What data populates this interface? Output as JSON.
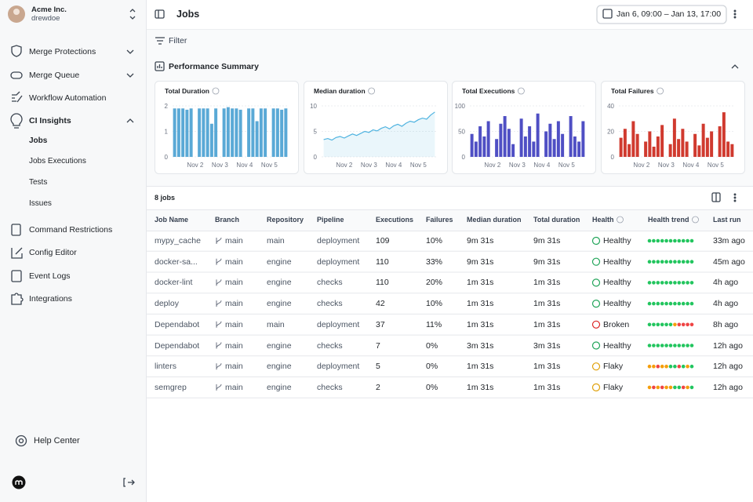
{
  "sidebar": {
    "org": "Acme Inc.",
    "user": "drewdoe",
    "nav": [
      "Merge Protections",
      "Merge Queue",
      "Workflow Automation",
      "CI Insights"
    ],
    "ci_children": [
      "Jobs",
      "Jobs Executions",
      "Tests",
      "Issues"
    ],
    "nav_bottom": [
      "Command Restrictions",
      "Config Editor",
      "Event Logs",
      "Integrations"
    ],
    "help": "Help Center"
  },
  "header": {
    "title": "Jobs",
    "date_range": "Jan 6, 09:00 – Jan 13, 17:00"
  },
  "filter": "Filter",
  "summary": {
    "title": "Performance Summary"
  },
  "chart_data": [
    {
      "type": "bar",
      "title": "Total Duration",
      "color": "#5aa9d6",
      "ylim": [
        0,
        2
      ],
      "yticks": [
        0,
        1,
        2
      ],
      "grid": true,
      "categories": [
        null,
        null,
        null,
        null,
        null,
        "Nov 2",
        null,
        null,
        null,
        null,
        null,
        "Nov 3",
        null,
        null,
        null,
        null,
        null,
        "Nov 4",
        null,
        null,
        null,
        null,
        null,
        "Nov 5",
        null,
        null,
        null,
        null
      ],
      "values": [
        1.9,
        1.9,
        1.9,
        1.85,
        1.9,
        null,
        1.9,
        1.9,
        1.9,
        1.3,
        1.9,
        null,
        1.9,
        1.95,
        1.9,
        1.9,
        1.85,
        null,
        1.9,
        1.9,
        1.4,
        1.9,
        1.9,
        null,
        1.9,
        1.9,
        1.85,
        1.9
      ]
    },
    {
      "type": "line",
      "title": "Median duration",
      "color": "#4fb3e0",
      "ylim": [
        0,
        10
      ],
      "yticks": [
        0,
        5,
        10
      ],
      "grid": true,
      "categories": [
        null,
        null,
        null,
        null,
        null,
        "Nov 2",
        null,
        null,
        null,
        null,
        null,
        "Nov 3",
        null,
        null,
        null,
        null,
        null,
        "Nov 4",
        null,
        null,
        null,
        null,
        null,
        "Nov 5",
        null,
        null,
        null,
        null
      ],
      "values": [
        3.4,
        3.6,
        3.3,
        3.8,
        4.0,
        3.7,
        4.1,
        4.5,
        4.2,
        4.6,
        5.0,
        4.8,
        5.3,
        5.1,
        5.6,
        5.9,
        5.5,
        6.1,
        6.4,
        6.0,
        6.6,
        7.0,
        6.8,
        7.3,
        7.6,
        7.4,
        8.2,
        8.8
      ]
    },
    {
      "type": "bar",
      "title": "Total Executions",
      "color": "#4f4fc4",
      "ylim": [
        0,
        100
      ],
      "yticks": [
        0,
        50,
        100
      ],
      "grid": true,
      "categories": [
        null,
        null,
        null,
        null,
        null,
        "Nov 2",
        null,
        null,
        null,
        null,
        null,
        "Nov 3",
        null,
        null,
        null,
        null,
        null,
        "Nov 4",
        null,
        null,
        null,
        null,
        null,
        "Nov 5",
        null,
        null,
        null,
        null
      ],
      "values": [
        45,
        30,
        60,
        40,
        70,
        null,
        35,
        65,
        80,
        55,
        25,
        null,
        75,
        40,
        60,
        30,
        85,
        null,
        50,
        65,
        35,
        70,
        45,
        null,
        80,
        40,
        30,
        70
      ]
    },
    {
      "type": "bar",
      "title": "Total Failures",
      "color": "#d03a2f",
      "ylim": [
        0,
        40
      ],
      "yticks": [
        0,
        20,
        40
      ],
      "grid": true,
      "categories": [
        null,
        null,
        null,
        null,
        null,
        "Nov 2",
        null,
        null,
        null,
        null,
        null,
        "Nov 3",
        null,
        null,
        null,
        null,
        null,
        "Nov 4",
        null,
        null,
        null,
        null,
        null,
        "Nov 5",
        null,
        null,
        null,
        null
      ],
      "values": [
        15,
        22,
        10,
        28,
        18,
        null,
        12,
        20,
        8,
        16,
        25,
        null,
        10,
        30,
        14,
        22,
        12,
        null,
        18,
        9,
        26,
        15,
        20,
        null,
        24,
        35,
        12,
        10
      ]
    }
  ],
  "table": {
    "count": "8 jobs",
    "columns": [
      "Job Name",
      "Branch",
      "Repository",
      "Pipeline",
      "Executions",
      "Failures",
      "Median duration",
      "Total duration",
      "Health",
      "Health trend",
      "Last run"
    ],
    "rows": [
      {
        "job": "mypy_cache",
        "branch": "main",
        "repository": "main",
        "pipeline": "deployment",
        "executions": 109,
        "failures": "10%",
        "median": "9m 31s",
        "total": "9m 31s",
        "health": "Healthy",
        "health_color": "#22a55a",
        "last_run": "33m ago",
        "trend": [
          "#22c55e",
          "#22c55e",
          "#22c55e",
          "#22c55e",
          "#22c55e",
          "#22c55e",
          "#22c55e",
          "#22c55e",
          "#22c55e",
          "#22c55e",
          "#22c55e"
        ]
      },
      {
        "job": "docker-sa...",
        "branch": "main",
        "repository": "engine",
        "pipeline": "deployment",
        "executions": 110,
        "failures": "33%",
        "median": "9m 31s",
        "total": "9m 31s",
        "health": "Healthy",
        "health_color": "#22a55a",
        "last_run": "45m ago",
        "trend": [
          "#22c55e",
          "#22c55e",
          "#22c55e",
          "#22c55e",
          "#22c55e",
          "#22c55e",
          "#22c55e",
          "#22c55e",
          "#22c55e",
          "#22c55e",
          "#22c55e"
        ]
      },
      {
        "job": "docker-lint",
        "branch": "main",
        "repository": "engine",
        "pipeline": "checks",
        "executions": 110,
        "failures": "20%",
        "median": "1m 31s",
        "total": "1m 31s",
        "health": "Healthy",
        "health_color": "#22a55a",
        "last_run": "4h ago",
        "trend": [
          "#22c55e",
          "#22c55e",
          "#22c55e",
          "#22c55e",
          "#22c55e",
          "#22c55e",
          "#22c55e",
          "#22c55e",
          "#22c55e",
          "#22c55e",
          "#22c55e"
        ]
      },
      {
        "job": "deploy",
        "branch": "main",
        "repository": "engine",
        "pipeline": "checks",
        "executions": 42,
        "failures": "10%",
        "median": "1m 31s",
        "total": "1m 31s",
        "health": "Healthy",
        "health_color": "#22a55a",
        "last_run": "4h ago",
        "trend": [
          "#22c55e",
          "#22c55e",
          "#22c55e",
          "#22c55e",
          "#22c55e",
          "#22c55e",
          "#22c55e",
          "#22c55e",
          "#22c55e",
          "#22c55e",
          "#22c55e"
        ]
      },
      {
        "job": "Dependabot",
        "branch": "main",
        "repository": "main",
        "pipeline": "deployment",
        "executions": 37,
        "failures": "11%",
        "median": "1m 31s",
        "total": "1m 31s",
        "health": "Broken",
        "health_color": "#dc2626",
        "last_run": "8h ago",
        "trend": [
          "#22c55e",
          "#22c55e",
          "#22c55e",
          "#22c55e",
          "#22c55e",
          "#22c55e",
          "#f59e0b",
          "#ef4444",
          "#ef4444",
          "#ef4444",
          "#ef4444"
        ]
      },
      {
        "job": "Dependabot",
        "branch": "main",
        "repository": "engine",
        "pipeline": "checks",
        "executions": 7,
        "failures": "0%",
        "median": "3m 31s",
        "total": "3m 31s",
        "health": "Healthy",
        "health_color": "#22a55a",
        "last_run": "12h ago",
        "trend": [
          "#22c55e",
          "#22c55e",
          "#22c55e",
          "#22c55e",
          "#22c55e",
          "#22c55e",
          "#22c55e",
          "#22c55e",
          "#22c55e",
          "#22c55e",
          "#22c55e"
        ]
      },
      {
        "job": "linters",
        "branch": "main",
        "repository": "engine",
        "pipeline": "deployment",
        "executions": 5,
        "failures": "0%",
        "median": "1m 31s",
        "total": "1m 31s",
        "health": "Flaky",
        "health_color": "#e0a10b",
        "last_run": "12h ago",
        "trend": [
          "#f59e0b",
          "#f59e0b",
          "#ef4444",
          "#f59e0b",
          "#f59e0b",
          "#22c55e",
          "#22c55e",
          "#ef4444",
          "#22c55e",
          "#f59e0b",
          "#22c55e"
        ]
      },
      {
        "job": "semgrep",
        "branch": "main",
        "repository": "engine",
        "pipeline": "checks",
        "executions": 2,
        "failures": "0%",
        "median": "1m 31s",
        "total": "1m 31s",
        "health": "Flaky",
        "health_color": "#e0a10b",
        "last_run": "12h ago",
        "trend": [
          "#f59e0b",
          "#ef4444",
          "#f59e0b",
          "#ef4444",
          "#f59e0b",
          "#f59e0b",
          "#22c55e",
          "#22c55e",
          "#ef4444",
          "#f59e0b",
          "#22c55e"
        ]
      }
    ]
  }
}
